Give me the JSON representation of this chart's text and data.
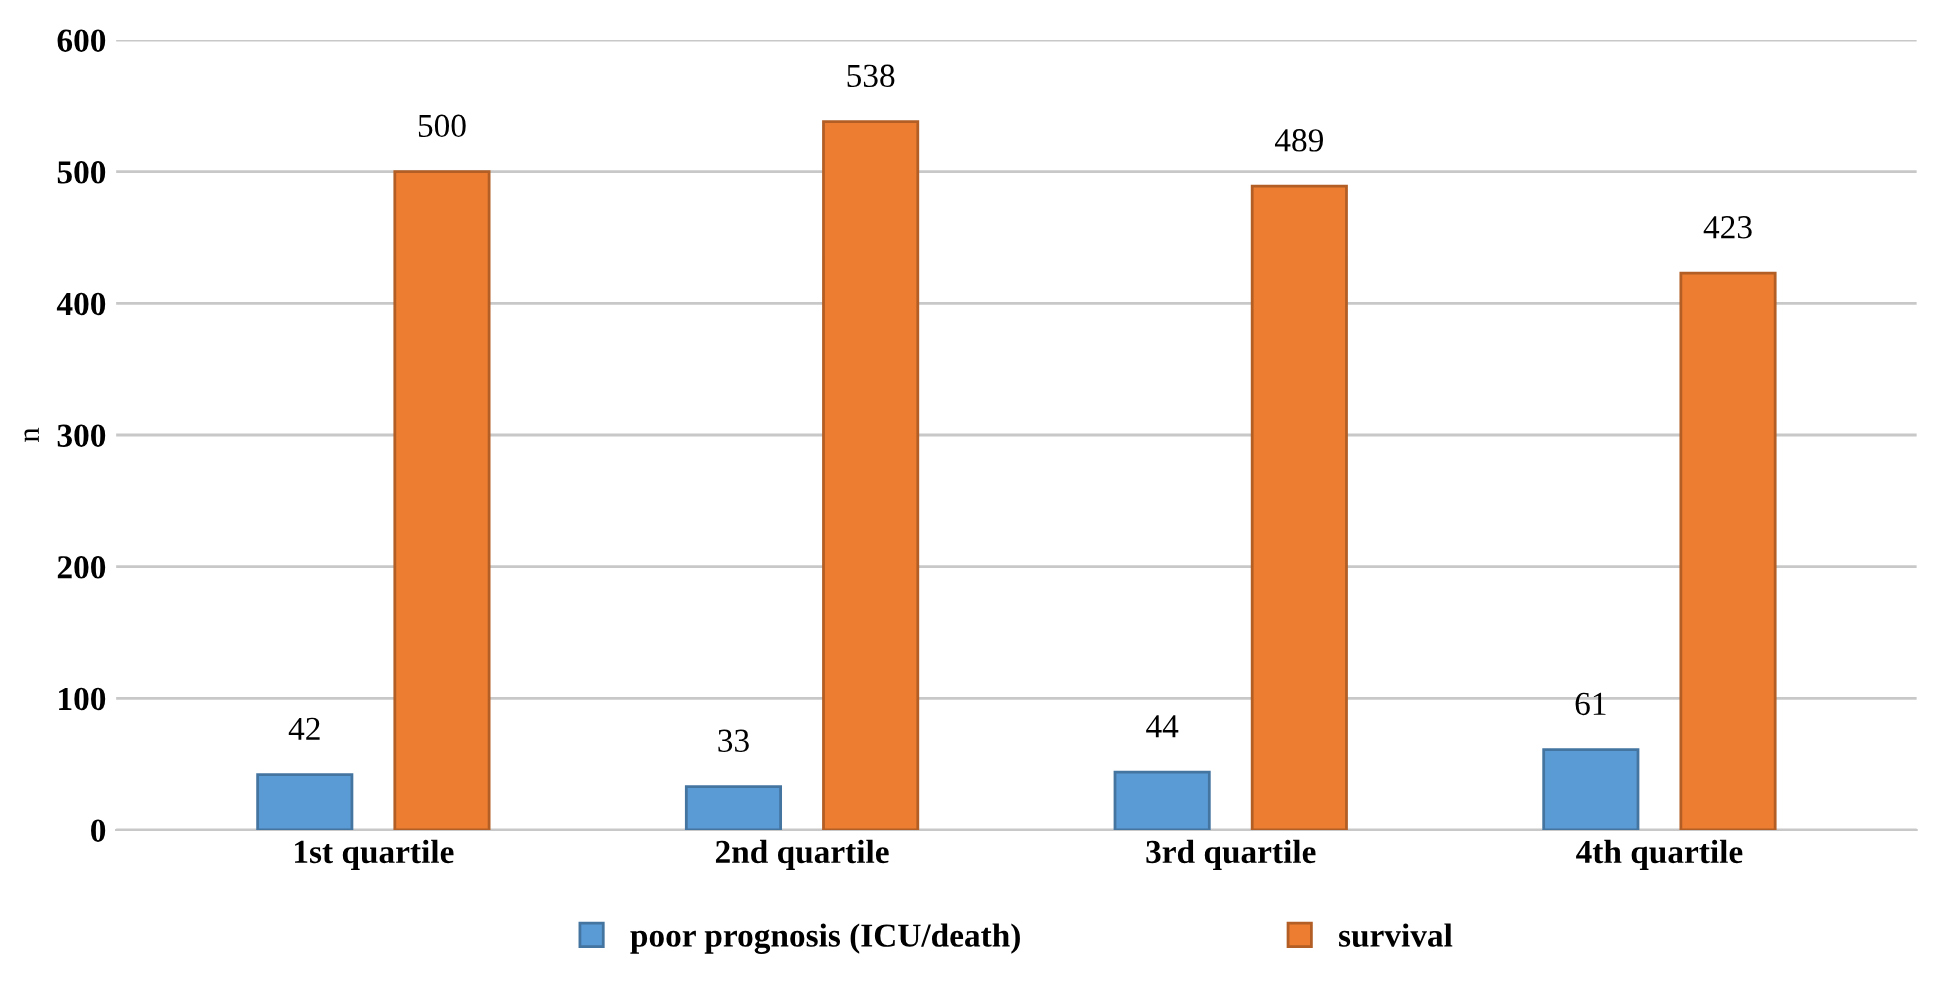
{
  "chart_data": {
    "type": "bar",
    "ylabel": "n",
    "categories": [
      "1st quartile",
      "2nd quartile",
      "3rd quartile",
      "4th quartile"
    ],
    "series": [
      {
        "name": "poor prognosis (ICU/death)",
        "color": "#5b9bd5",
        "values": [
          42,
          33,
          44,
          61
        ]
      },
      {
        "name": "survival",
        "color": "#ed7d31",
        "values": [
          500,
          538,
          489,
          423
        ]
      }
    ],
    "ylim": [
      0,
      600
    ],
    "yticks": [
      0,
      100,
      200,
      300,
      400,
      500,
      600
    ],
    "grid": "y",
    "legend": "bottom",
    "data_labels": true
  }
}
